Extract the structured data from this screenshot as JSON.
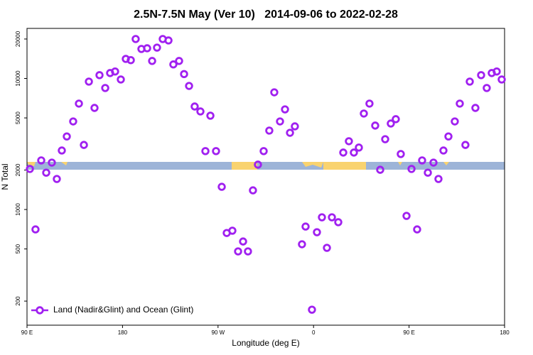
{
  "chart_data": {
    "type": "scatter",
    "title": "2.5N-7.5N May (Ver 10)   2014-09-06 to 2022-02-28",
    "xlabel": "Longitude (deg E)",
    "ylabel": "N Total",
    "log_y": true,
    "legend": "lower left",
    "xlim": [
      90,
      540
    ],
    "xticks": [
      {
        "value": 90,
        "label": "90 E"
      },
      180,
      {
        "value": 270,
        "label": "90 W"
      },
      {
        "value": 360,
        "label": "0"
      },
      {
        "value": 450,
        "label": "90 E"
      },
      {
        "value": 540,
        "label": "180"
      }
    ],
    "ylim": [
      131,
      24100
    ],
    "yticks": [
      200,
      500,
      1000,
      2000,
      5000,
      10000,
      20000
    ],
    "series": [
      {
        "name": "Land (Nadir&Glint) and Ocean (Glint)",
        "color": "#a020f0",
        "x": [
          92.7,
          98.0,
          103.4,
          108.1,
          113.4,
          118.1,
          122.8,
          127.5,
          133.5,
          138.9,
          143.6,
          148.3,
          153.6,
          158.3,
          163.7,
          168.3,
          173.0,
          178.4,
          183.1,
          187.8,
          192.4,
          197.8,
          203.2,
          207.9,
          212.5,
          217.9,
          223.3,
          227.9,
          233.3,
          238.0,
          242.7,
          248.0,
          253.4,
          258.1,
          262.8,
          268.1,
          273.5,
          278.2,
          283.5,
          288.9,
          293.6,
          298.2,
          302.9,
          307.6,
          313.0,
          318.3,
          323.0,
          328.4,
          333.1,
          337.8,
          342.4,
          349.1,
          352.5,
          358.5,
          363.2,
          367.9,
          372.6,
          377.3,
          383.3,
          388.0,
          393.3,
          398.0,
          402.7,
          407.4,
          412.7,
          418.1,
          422.8,
          427.5,
          432.8,
          437.5,
          442.2,
          447.6,
          452.3,
          457.6,
          462.3,
          467.7,
          473.0,
          477.7,
          482.4,
          487.1,
          493.1,
          497.8,
          503.1,
          507.2,
          512.5,
          517.9,
          523.2,
          527.9,
          532.6,
          537.3
        ],
        "values": [
          2040,
          705,
          2370,
          1910,
          2280,
          1710,
          2820,
          3610,
          4700,
          6430,
          3110,
          9460,
          5960,
          10600,
          8460,
          11000,
          11300,
          9820,
          14100,
          13800,
          20000,
          16800,
          17000,
          13600,
          17200,
          20000,
          19500,
          12800,
          13600,
          10800,
          8770,
          6110,
          5600,
          2790,
          5200,
          2790,
          1490,
          662,
          689,
          479,
          570,
          479,
          1400,
          2200,
          2790,
          4000,
          7840,
          4700,
          5810,
          3850,
          4310,
          543,
          741,
          172,
          671,
          872,
          510,
          872,
          800,
          2720,
          3320,
          2720,
          2970,
          5400,
          6430,
          4370,
          2010,
          3440,
          4530,
          4890,
          2650,
          894,
          2040,
          705,
          2370,
          1910,
          2280,
          1710,
          2820,
          3610,
          4700,
          6430,
          3110,
          9460,
          5960,
          10600,
          8460,
          11000,
          11300,
          9820
        ]
      }
    ]
  }
}
